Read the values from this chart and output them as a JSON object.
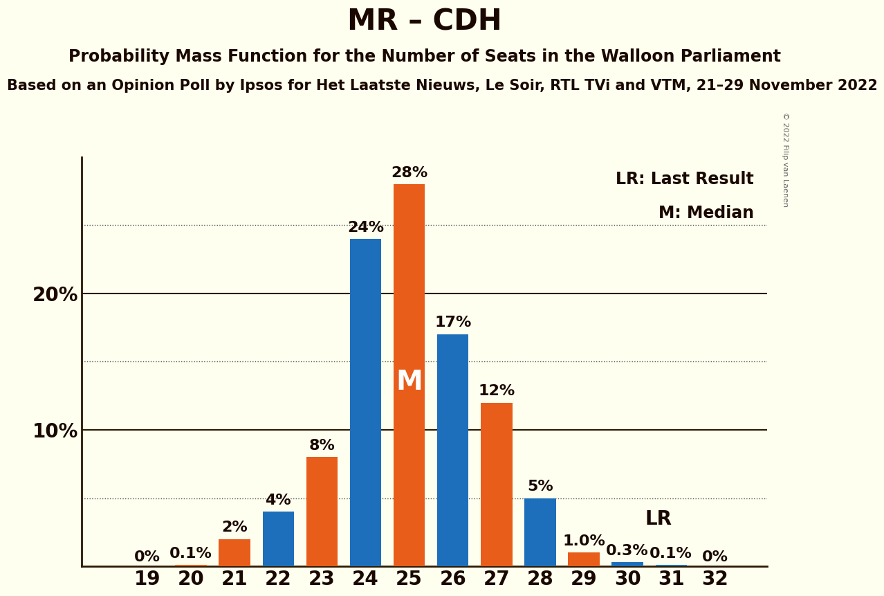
{
  "title": "MR – CDH",
  "subtitle1": "Probability Mass Function for the Number of Seats in the Walloon Parliament",
  "subtitle2": "Based on an Opinion Poll by Ipsos for Het Laatste Nieuws, Le Soir, RTL TVi and VTM, 21–29 November 2022",
  "copyright": "© 2022 Filip van Laenen",
  "background_color": "#FFFFF0",
  "bar_color_blue": "#1e6fbb",
  "bar_color_orange": "#e85d1a",
  "seats": [
    19,
    20,
    21,
    22,
    23,
    24,
    25,
    26,
    27,
    28,
    29,
    30,
    31,
    32
  ],
  "blue_values": [
    0.0,
    0.0,
    0.0,
    4.0,
    0.0,
    24.0,
    0.0,
    17.0,
    0.0,
    5.0,
    0.0,
    0.3,
    0.1,
    0.0
  ],
  "orange_values": [
    0.0,
    0.1,
    2.0,
    0.0,
    8.0,
    0.0,
    28.0,
    0.0,
    12.0,
    0.0,
    1.0,
    0.0,
    0.0,
    0.0
  ],
  "blue_label_seats": [
    22,
    24,
    26,
    28,
    30,
    31
  ],
  "blue_label_texts": [
    "4%",
    "24%",
    "17%",
    "5%",
    "0.3%",
    "0.1%"
  ],
  "orange_label_seats": [
    19,
    20,
    21,
    23,
    25,
    27,
    29,
    32
  ],
  "orange_label_texts": [
    "0%",
    "0.1%",
    "2%",
    "8%",
    "28%",
    "12%",
    "1.0%",
    "0%"
  ],
  "median_seat": 25,
  "lr_seat": 29,
  "bar_width": 0.72,
  "ylim": [
    0,
    30
  ],
  "major_gridlines": [
    10,
    20
  ],
  "dotted_gridlines": [
    5,
    15,
    25
  ],
  "title_fontsize": 30,
  "subtitle1_fontsize": 17,
  "subtitle2_fontsize": 15,
  "axis_tick_fontsize": 20,
  "bar_label_fontsize": 16,
  "legend_fontsize": 17,
  "lr_label_fontsize": 20,
  "text_color": "#1a0800",
  "grid_color_major": "#2a1800",
  "grid_color_dotted": "#555555"
}
